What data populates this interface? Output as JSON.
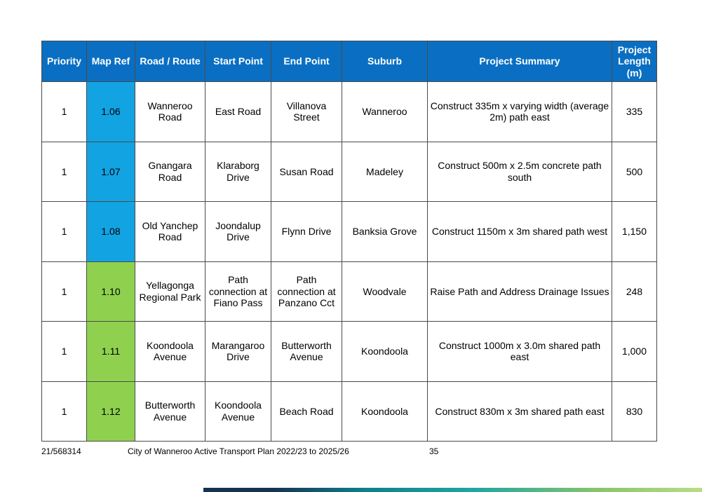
{
  "table": {
    "headers": {
      "priority": "Priority",
      "map_ref": "Map Ref",
      "road_route": "Road / Route",
      "start_point": "Start Point",
      "end_point": "End Point",
      "suburb": "Suburb",
      "project_summary": "Project Summary",
      "project_length": "Project Length (m)"
    },
    "rows": [
      {
        "priority": "1",
        "map_ref": "1.06",
        "map_ref_color": "#12a3e3",
        "road_route": "Wanneroo Road",
        "start_point": "East Road",
        "end_point": "Villanova Street",
        "suburb": "Wanneroo",
        "project_summary": "Construct 335m x varying width (average 2m) path east",
        "project_length": "335"
      },
      {
        "priority": "1",
        "map_ref": "1.07",
        "map_ref_color": "#12a3e3",
        "road_route": "Gnangara Road",
        "start_point": "Klaraborg Drive",
        "end_point": "Susan Road",
        "suburb": "Madeley",
        "project_summary": "Construct 500m x 2.5m concrete path south",
        "project_length": "500"
      },
      {
        "priority": "1",
        "map_ref": "1.08",
        "map_ref_color": "#12a3e3",
        "road_route": "Old Yanchep Road",
        "start_point": "Joondalup Drive",
        "end_point": "Flynn Drive",
        "suburb": "Banksia Grove",
        "project_summary": "Construct 1150m x 3m shared path west",
        "project_length": "1,150"
      },
      {
        "priority": "1",
        "map_ref": "1.10",
        "map_ref_color": "#8fd14f",
        "road_route": "Yellagonga Regional Park",
        "start_point": "Path connection at Fiano Pass",
        "end_point": "Path connection at Panzano Cct",
        "suburb": "Woodvale",
        "project_summary": "Raise Path and Address Drainage Issues",
        "project_length": "248"
      },
      {
        "priority": "1",
        "map_ref": "1.11",
        "map_ref_color": "#8fd14f",
        "road_route": "Koondoola Avenue",
        "start_point": "Marangaroo Drive",
        "end_point": "Butterworth Avenue",
        "suburb": "Koondoola",
        "project_summary": "Construct 1000m  x 3.0m shared path east",
        "project_length": "1,000"
      },
      {
        "priority": "1",
        "map_ref": "1.12",
        "map_ref_color": "#8fd14f",
        "road_route": "Butterworth Avenue",
        "start_point": "Koondoola Avenue",
        "end_point": "Beach Road",
        "suburb": "Koondoola",
        "project_summary": "Construct 830m x 3m shared path east",
        "project_length": "830"
      }
    ]
  },
  "footer": {
    "doc_number": "21/568314",
    "doc_title": "City of Wanneroo Active Transport Plan 2022/23 to 2025/26",
    "page_number": "35"
  },
  "colors": {
    "header_blue": "#0a6fc2",
    "mapref_blue": "#12a3e3",
    "mapref_green": "#8fd14f"
  }
}
